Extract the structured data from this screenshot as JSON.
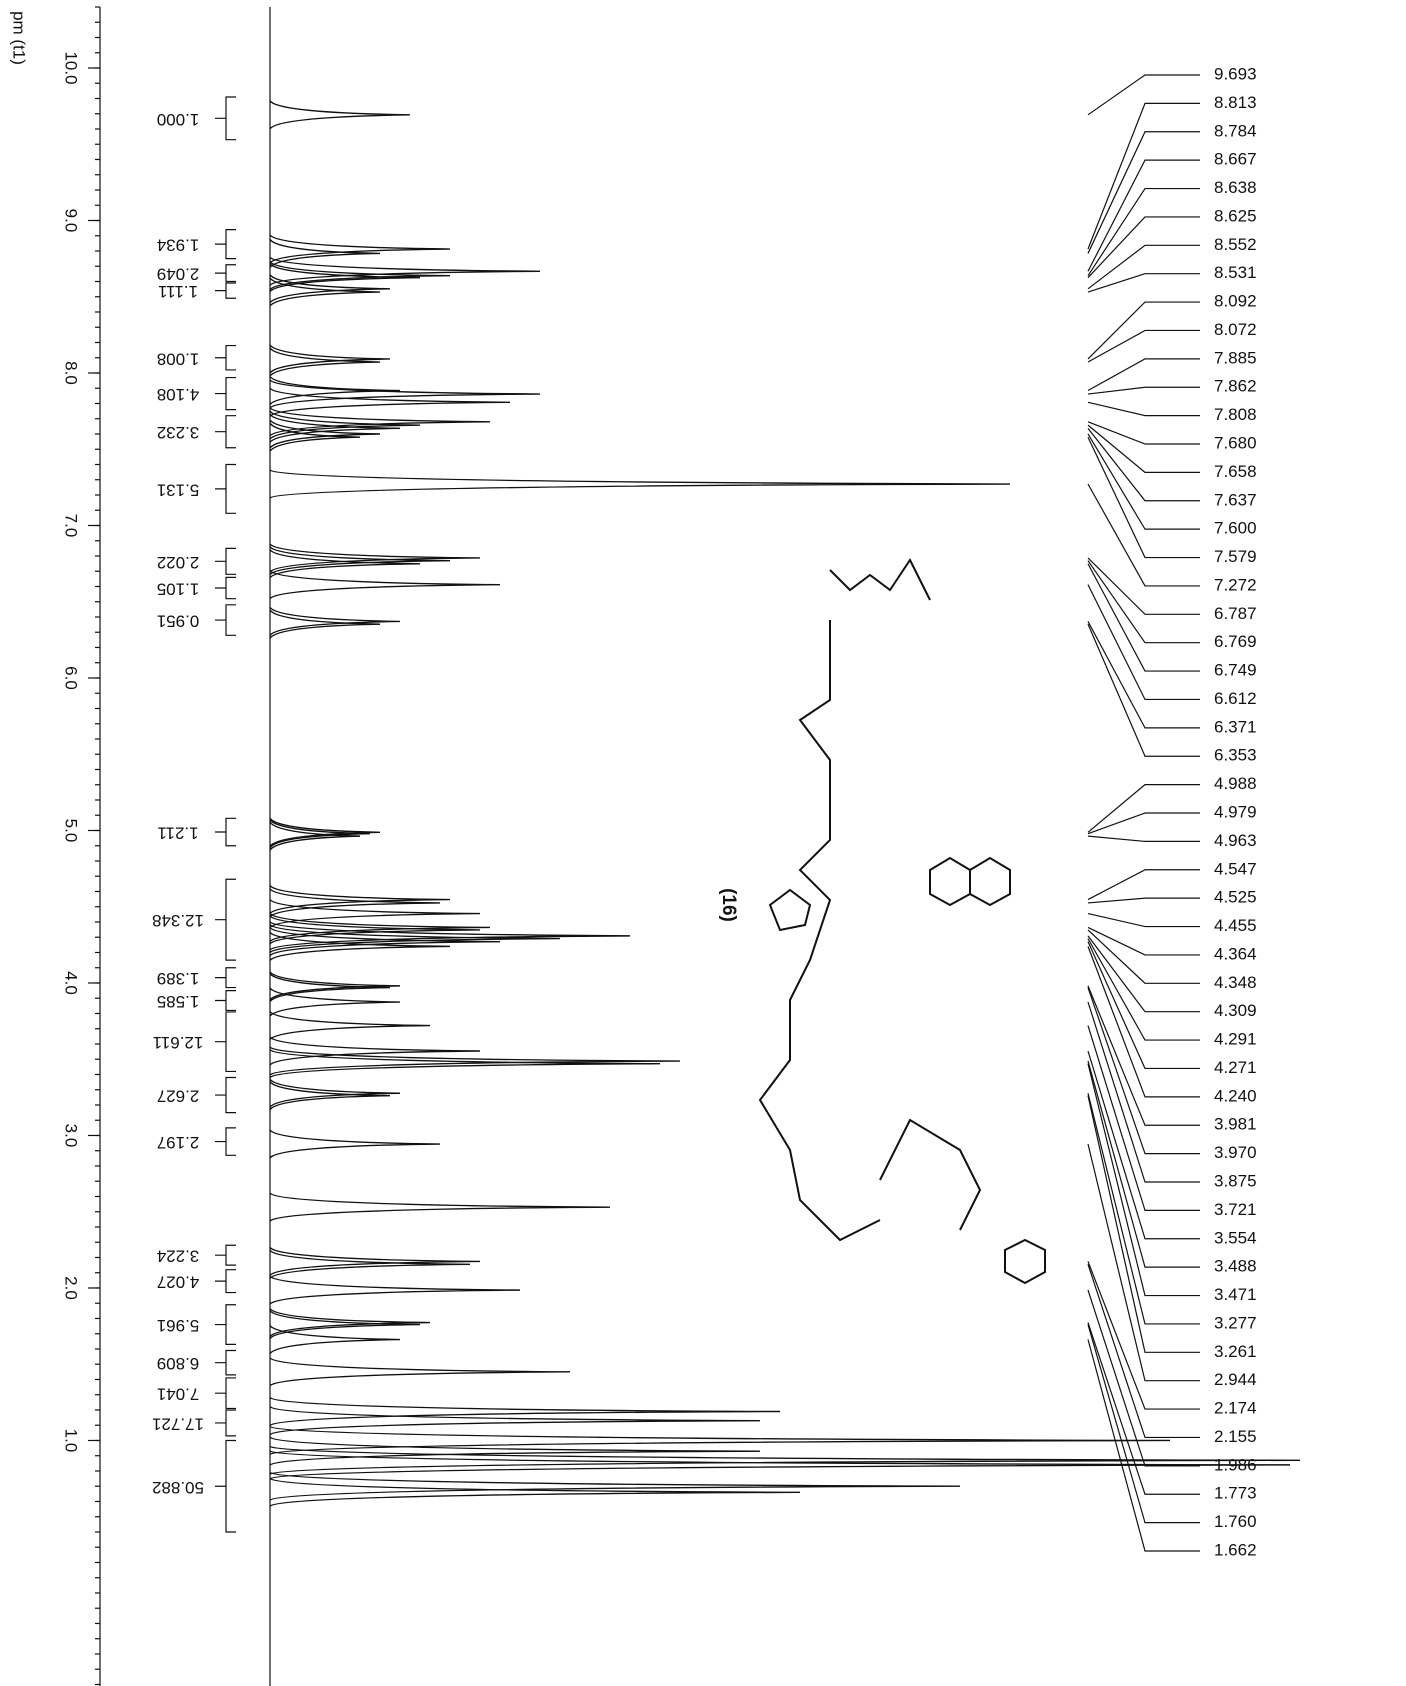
{
  "chart_data": {
    "type": "nmr",
    "axis_label": "pm (t1)",
    "structure_label": "(16)",
    "ylim": [
      10.4,
      -0.61
    ],
    "xlim": [
      0,
      113.6
    ],
    "minor_tick_step": 0.1,
    "yticks": [
      {
        "value": 10,
        "label": "10.0"
      },
      {
        "value": 9,
        "label": "9.0"
      },
      {
        "value": 8,
        "label": "8.0"
      },
      {
        "value": 7,
        "label": "7.0"
      },
      {
        "value": 6,
        "label": "6.0"
      },
      {
        "value": 5,
        "label": "5.0"
      },
      {
        "value": 4,
        "label": "4.0"
      },
      {
        "value": 3,
        "label": "3.0"
      },
      {
        "value": 2,
        "label": "2.0"
      },
      {
        "value": 1,
        "label": "1.0"
      }
    ],
    "integrals": [
      {
        "value": 1.0,
        "label": "1.000",
        "from": 9.81,
        "to": 9.53
      },
      {
        "value": 1.934,
        "label": "1.934",
        "from": 8.94,
        "to": 8.75
      },
      {
        "value": 2.049,
        "label": "2.049",
        "from": 8.71,
        "to": 8.6
      },
      {
        "value": 1.111,
        "label": "1.111",
        "from": 8.59,
        "to": 8.49
      },
      {
        "value": 1.008,
        "label": "1.008",
        "from": 8.18,
        "to": 8.02
      },
      {
        "value": 4.108,
        "label": "4.108",
        "from": 7.97,
        "to": 7.76
      },
      {
        "value": 3.232,
        "label": "3.232",
        "from": 7.72,
        "to": 7.51
      },
      {
        "value": 5.131,
        "label": "5.131",
        "from": 7.4,
        "to": 7.08
      },
      {
        "value": 2.022,
        "label": "2.022",
        "from": 6.85,
        "to": 6.68
      },
      {
        "value": 1.105,
        "label": "1.105",
        "from": 6.66,
        "to": 6.52
      },
      {
        "value": 0.951,
        "label": "0.951",
        "from": 6.48,
        "to": 6.28
      },
      {
        "value": 1.211,
        "label": "1.211",
        "from": 5.08,
        "to": 4.9
      },
      {
        "value": 12.348,
        "label": "12.348",
        "from": 4.68,
        "to": 4.15
      },
      {
        "value": 1.389,
        "label": "1.389",
        "from": 4.1,
        "to": 3.97
      },
      {
        "value": 1.585,
        "label": "1.585",
        "from": 3.95,
        "to": 3.82
      },
      {
        "value": 12.611,
        "label": "12.611",
        "from": 3.81,
        "to": 3.42
      },
      {
        "value": 2.627,
        "label": "2.627",
        "from": 3.38,
        "to": 3.15
      },
      {
        "value": 2.197,
        "label": "2.197",
        "from": 3.05,
        "to": 2.87
      },
      {
        "value": 3.224,
        "label": "3.224",
        "from": 2.28,
        "to": 2.15
      },
      {
        "value": 4.027,
        "label": "4.027",
        "from": 2.12,
        "to": 1.97
      },
      {
        "value": 5.961,
        "label": "5.961",
        "from": 1.89,
        "to": 1.63
      },
      {
        "value": 6.809,
        "label": "6.809",
        "from": 1.59,
        "to": 1.43
      },
      {
        "value": 7.041,
        "label": "7.041",
        "from": 1.41,
        "to": 1.21
      },
      {
        "value": 17.721,
        "label": "17.721",
        "from": 1.2,
        "to": 1.03
      },
      {
        "value": 50.882,
        "label": "50.882",
        "from": 1.0,
        "to": 0.4
      }
    ],
    "peak_labels": [
      {
        "value": 9.693,
        "label": "9.693"
      },
      {
        "value": 8.813,
        "label": "8.813"
      },
      {
        "value": 8.784,
        "label": "8.784"
      },
      {
        "value": 8.667,
        "label": "8.667"
      },
      {
        "value": 8.638,
        "label": "8.638"
      },
      {
        "value": 8.625,
        "label": "8.625"
      },
      {
        "value": 8.552,
        "label": "8.552"
      },
      {
        "value": 8.531,
        "label": "8.531"
      },
      {
        "value": 8.092,
        "label": "8.092"
      },
      {
        "value": 8.072,
        "label": "8.072"
      },
      {
        "value": 7.885,
        "label": "7.885"
      },
      {
        "value": 7.862,
        "label": "7.862"
      },
      {
        "value": 7.808,
        "label": "7.808"
      },
      {
        "value": 7.68,
        "label": "7.680"
      },
      {
        "value": 7.658,
        "label": "7.658"
      },
      {
        "value": 7.637,
        "label": "7.637"
      },
      {
        "value": 7.6,
        "label": "7.600"
      },
      {
        "value": 7.579,
        "label": "7.579"
      },
      {
        "value": 7.272,
        "label": "7.272"
      },
      {
        "value": 6.787,
        "label": "6.787"
      },
      {
        "value": 6.769,
        "label": "6.769"
      },
      {
        "value": 6.749,
        "label": "6.749"
      },
      {
        "value": 6.612,
        "label": "6.612"
      },
      {
        "value": 6.371,
        "label": "6.371"
      },
      {
        "value": 6.353,
        "label": "6.353"
      },
      {
        "value": 4.988,
        "label": "4.988"
      },
      {
        "value": 4.979,
        "label": "4.979"
      },
      {
        "value": 4.963,
        "label": "4.963"
      },
      {
        "value": 4.547,
        "label": "4.547"
      },
      {
        "value": 4.525,
        "label": "4.525"
      },
      {
        "value": 4.455,
        "label": "4.455"
      },
      {
        "value": 4.364,
        "label": "4.364"
      },
      {
        "value": 4.348,
        "label": "4.348"
      },
      {
        "value": 4.309,
        "label": "4.309"
      },
      {
        "value": 4.291,
        "label": "4.291"
      },
      {
        "value": 4.271,
        "label": "4.271"
      },
      {
        "value": 4.24,
        "label": "4.240"
      },
      {
        "value": 3.981,
        "label": "3.981"
      },
      {
        "value": 3.97,
        "label": "3.970"
      },
      {
        "value": 3.875,
        "label": "3.875"
      },
      {
        "value": 3.721,
        "label": "3.721"
      },
      {
        "value": 3.554,
        "label": "3.554"
      },
      {
        "value": 3.488,
        "label": "3.488"
      },
      {
        "value": 3.471,
        "label": "3.471"
      },
      {
        "value": 3.277,
        "label": "3.277"
      },
      {
        "value": 3.261,
        "label": "3.261"
      },
      {
        "value": 2.944,
        "label": "2.944"
      },
      {
        "value": 2.174,
        "label": "2.174"
      },
      {
        "value": 2.155,
        "label": "2.155"
      },
      {
        "value": 1.986,
        "label": "1.986"
      },
      {
        "value": 1.773,
        "label": "1.773"
      },
      {
        "value": 1.76,
        "label": "1.760"
      },
      {
        "value": 1.662,
        "label": "1.662"
      }
    ],
    "spectrum": {
      "ppm": [
        9.693,
        8.813,
        8.784,
        8.667,
        8.638,
        8.625,
        8.552,
        8.531,
        8.092,
        8.072,
        7.885,
        7.862,
        7.808,
        7.68,
        7.658,
        7.637,
        7.6,
        7.579,
        7.272,
        6.787,
        6.769,
        6.749,
        6.612,
        6.371,
        6.353,
        4.988,
        4.979,
        4.963,
        4.547,
        4.525,
        4.455,
        4.364,
        4.348,
        4.309,
        4.291,
        4.271,
        4.24,
        3.981,
        3.97,
        3.875,
        3.721,
        3.554,
        3.488,
        3.471,
        3.277,
        3.261,
        2.944,
        2.53,
        2.174,
        2.155,
        1.986,
        1.773,
        1.76,
        1.662,
        1.45,
        1.19,
        1.13,
        1.0,
        0.93,
        0.87,
        0.84,
        0.7,
        0.66
      ],
      "intensity": [
        14,
        18,
        11,
        27,
        18,
        15,
        12,
        11,
        12,
        11,
        13,
        27,
        24,
        22,
        15,
        13,
        11,
        9,
        74,
        21,
        18,
        15,
        23,
        13,
        11,
        11,
        10,
        9,
        18,
        17,
        21,
        22,
        21,
        36,
        29,
        23,
        18,
        13,
        12,
        13,
        16,
        21,
        41,
        39,
        13,
        12,
        17,
        34,
        21,
        20,
        25,
        16,
        15,
        13,
        30,
        51,
        49,
        90,
        49,
        103,
        102,
        69,
        53
      ]
    }
  }
}
